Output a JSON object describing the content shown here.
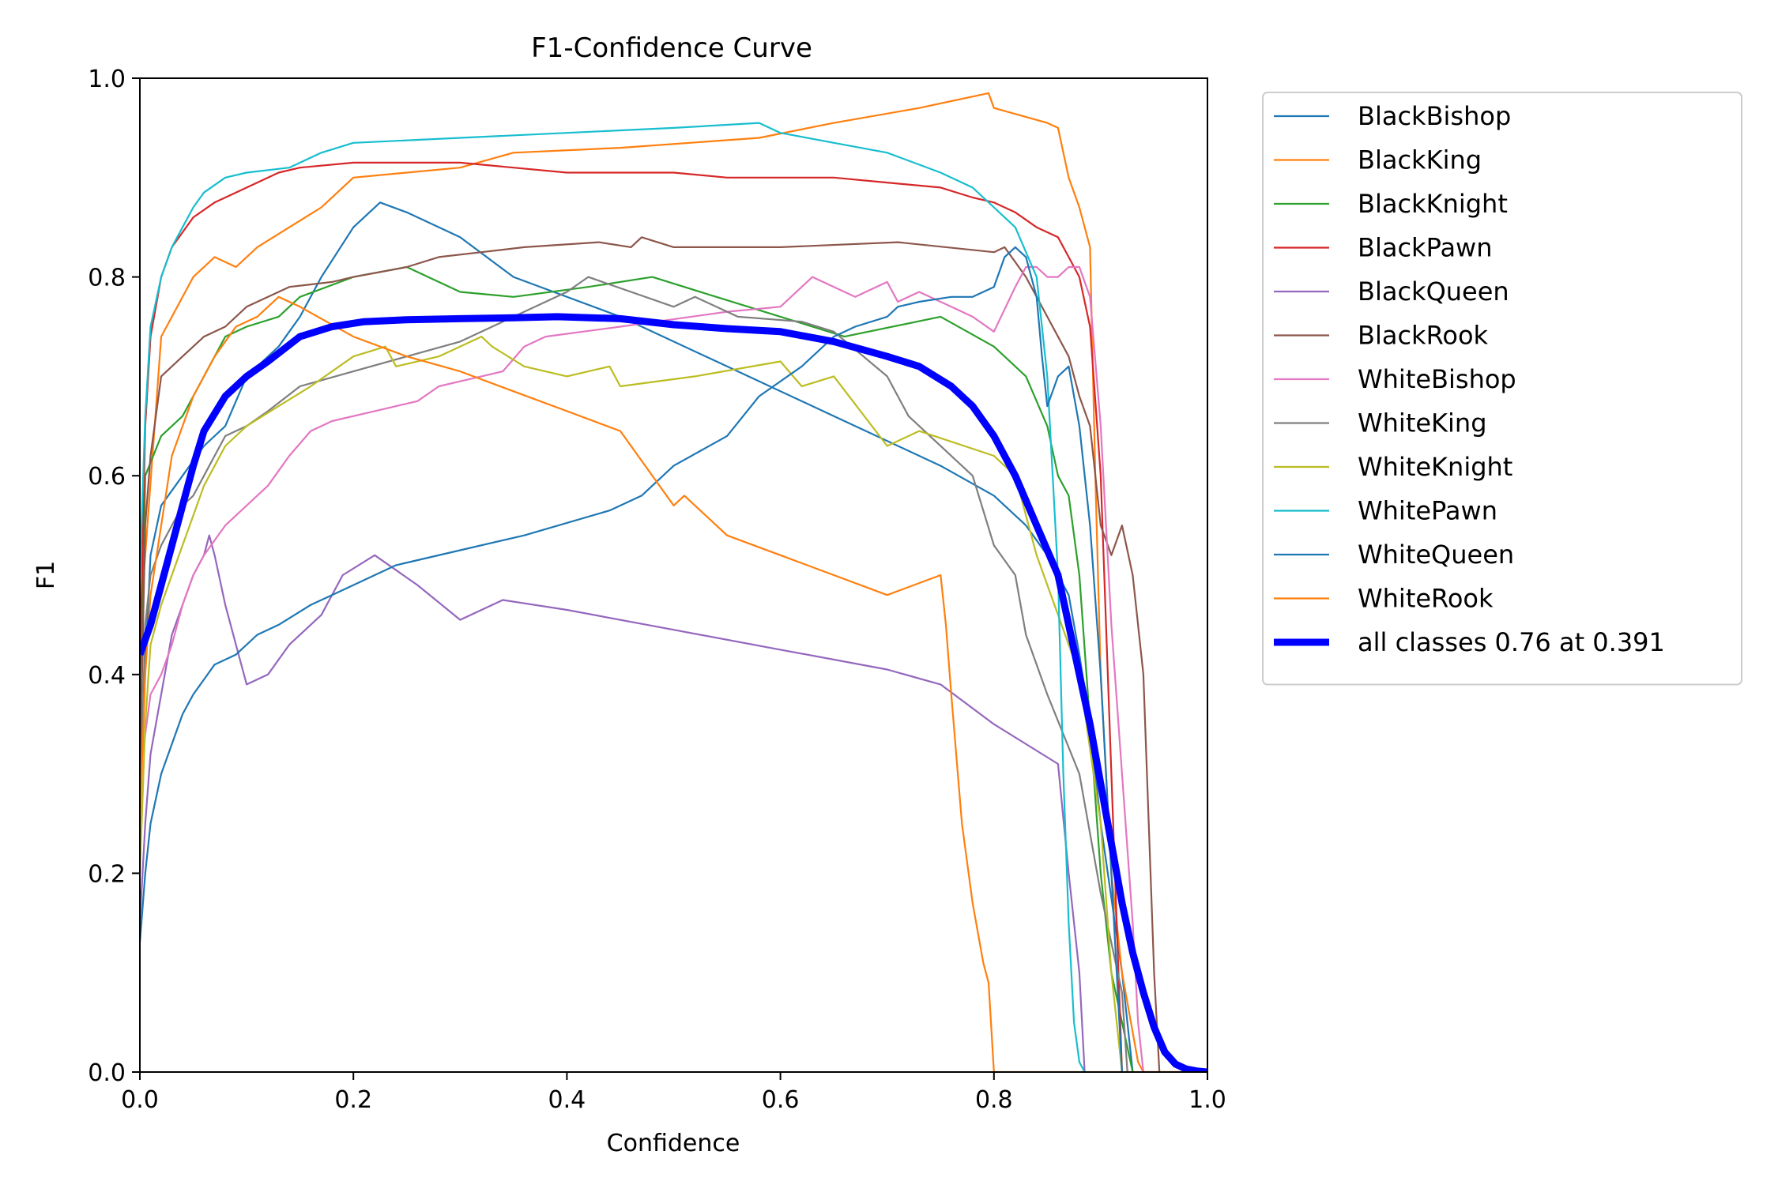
{
  "chart_data": {
    "type": "line",
    "title": "F1-Confidence Curve",
    "xlabel": "Confidence",
    "ylabel": "F1",
    "xlim": [
      0.0,
      1.0
    ],
    "ylim": [
      0.0,
      1.0
    ],
    "xticks": [
      "0.0",
      "0.2",
      "0.4",
      "0.6",
      "0.8",
      "1.0"
    ],
    "yticks": [
      "0.0",
      "0.2",
      "0.4",
      "0.6",
      "0.8",
      "1.0"
    ],
    "grid": false,
    "legend_position": "outside upper right",
    "series": [
      {
        "name": "BlackBishop",
        "color": "#1f77b4",
        "x": [
          0.0,
          0.01,
          0.02,
          0.04,
          0.06,
          0.08,
          0.1,
          0.13,
          0.15,
          0.17,
          0.2,
          0.225,
          0.25,
          0.3,
          0.35,
          0.45,
          0.55,
          0.65,
          0.75,
          0.8,
          0.83,
          0.85,
          0.87,
          0.88,
          0.89,
          0.9,
          0.92,
          0.93
        ],
        "y": [
          0.3,
          0.52,
          0.57,
          0.6,
          0.63,
          0.65,
          0.7,
          0.73,
          0.76,
          0.8,
          0.85,
          0.875,
          0.865,
          0.84,
          0.8,
          0.76,
          0.71,
          0.66,
          0.61,
          0.58,
          0.55,
          0.52,
          0.48,
          0.42,
          0.35,
          0.25,
          0.1,
          0.0
        ]
      },
      {
        "name": "BlackKing",
        "color": "#ff7f0e",
        "x": [
          0.0,
          0.005,
          0.02,
          0.05,
          0.07,
          0.09,
          0.11,
          0.14,
          0.17,
          0.2,
          0.3,
          0.35,
          0.45,
          0.58,
          0.65,
          0.73,
          0.795,
          0.8,
          0.85,
          0.86,
          0.87,
          0.88,
          0.89,
          0.895,
          0.9,
          0.91,
          0.92,
          0.93,
          0.935,
          0.94,
          1.0
        ],
        "y": [
          0.45,
          0.52,
          0.74,
          0.8,
          0.82,
          0.81,
          0.83,
          0.85,
          0.87,
          0.9,
          0.91,
          0.925,
          0.93,
          0.94,
          0.955,
          0.97,
          0.985,
          0.97,
          0.955,
          0.95,
          0.9,
          0.87,
          0.83,
          0.6,
          0.4,
          0.2,
          0.1,
          0.04,
          0.01,
          0.0,
          0.0
        ]
      },
      {
        "name": "BlackKnight",
        "color": "#2ca02c",
        "x": [
          0.0,
          0.005,
          0.02,
          0.04,
          0.06,
          0.08,
          0.1,
          0.13,
          0.15,
          0.2,
          0.25,
          0.3,
          0.35,
          0.42,
          0.48,
          0.54,
          0.6,
          0.66,
          0.75,
          0.8,
          0.83,
          0.85,
          0.86,
          0.87,
          0.88,
          0.89,
          0.9,
          0.91,
          0.92,
          0.93
        ],
        "y": [
          0.3,
          0.6,
          0.64,
          0.66,
          0.7,
          0.74,
          0.75,
          0.76,
          0.78,
          0.8,
          0.81,
          0.785,
          0.78,
          0.79,
          0.8,
          0.78,
          0.76,
          0.74,
          0.76,
          0.73,
          0.7,
          0.65,
          0.6,
          0.58,
          0.5,
          0.35,
          0.2,
          0.1,
          0.05,
          0.0
        ]
      },
      {
        "name": "BlackPawn",
        "color": "#d62728",
        "x": [
          0.0,
          0.005,
          0.01,
          0.02,
          0.03,
          0.05,
          0.07,
          0.09,
          0.11,
          0.13,
          0.15,
          0.2,
          0.25,
          0.3,
          0.35,
          0.4,
          0.45,
          0.5,
          0.55,
          0.6,
          0.65,
          0.7,
          0.75,
          0.78,
          0.8,
          0.82,
          0.84,
          0.86,
          0.87,
          0.88,
          0.89,
          0.9,
          0.91,
          0.92
        ],
        "y": [
          0.4,
          0.65,
          0.74,
          0.8,
          0.83,
          0.86,
          0.875,
          0.885,
          0.895,
          0.905,
          0.91,
          0.915,
          0.915,
          0.915,
          0.91,
          0.905,
          0.905,
          0.905,
          0.9,
          0.9,
          0.9,
          0.895,
          0.89,
          0.88,
          0.875,
          0.865,
          0.85,
          0.84,
          0.82,
          0.8,
          0.75,
          0.6,
          0.3,
          0.0
        ]
      },
      {
        "name": "BlackQueen",
        "color": "#9467bd",
        "x": [
          0.0,
          0.005,
          0.01,
          0.02,
          0.03,
          0.04,
          0.05,
          0.06,
          0.065,
          0.07,
          0.08,
          0.09,
          0.1,
          0.12,
          0.14,
          0.17,
          0.19,
          0.22,
          0.26,
          0.3,
          0.34,
          0.4,
          0.5,
          0.6,
          0.7,
          0.75,
          0.8,
          0.86,
          0.87,
          0.88,
          0.885
        ],
        "y": [
          0.15,
          0.25,
          0.32,
          0.38,
          0.44,
          0.47,
          0.5,
          0.52,
          0.54,
          0.52,
          0.47,
          0.43,
          0.39,
          0.4,
          0.43,
          0.46,
          0.5,
          0.52,
          0.49,
          0.455,
          0.475,
          0.465,
          0.445,
          0.425,
          0.405,
          0.39,
          0.35,
          0.31,
          0.2,
          0.1,
          0.0
        ]
      },
      {
        "name": "BlackRook",
        "color": "#8c564b",
        "x": [
          0.0,
          0.005,
          0.01,
          0.02,
          0.04,
          0.06,
          0.08,
          0.1,
          0.14,
          0.18,
          0.2,
          0.25,
          0.28,
          0.32,
          0.36,
          0.43,
          0.46,
          0.47,
          0.5,
          0.6,
          0.71,
          0.8,
          0.81,
          0.83,
          0.85,
          0.87,
          0.88,
          0.89,
          0.9,
          0.91,
          0.92,
          0.93,
          0.94,
          0.945,
          0.95,
          0.955
        ],
        "y": [
          0.3,
          0.55,
          0.62,
          0.7,
          0.72,
          0.74,
          0.75,
          0.77,
          0.79,
          0.795,
          0.8,
          0.81,
          0.82,
          0.825,
          0.83,
          0.835,
          0.83,
          0.84,
          0.83,
          0.83,
          0.835,
          0.825,
          0.83,
          0.8,
          0.76,
          0.72,
          0.68,
          0.65,
          0.55,
          0.52,
          0.55,
          0.5,
          0.4,
          0.25,
          0.1,
          0.0
        ]
      },
      {
        "name": "WhiteBishop",
        "color": "#e377c2",
        "x": [
          0.0,
          0.005,
          0.01,
          0.02,
          0.03,
          0.04,
          0.05,
          0.06,
          0.08,
          0.1,
          0.12,
          0.14,
          0.16,
          0.18,
          0.22,
          0.26,
          0.28,
          0.3,
          0.32,
          0.34,
          0.36,
          0.38,
          0.45,
          0.55,
          0.6,
          0.63,
          0.67,
          0.7,
          0.71,
          0.73,
          0.76,
          0.78,
          0.8,
          0.82,
          0.83,
          0.84,
          0.85,
          0.86,
          0.87,
          0.88,
          0.89,
          0.9,
          0.91,
          0.92,
          0.93,
          0.935,
          0.94
        ],
        "y": [
          0.3,
          0.34,
          0.38,
          0.4,
          0.43,
          0.47,
          0.5,
          0.52,
          0.55,
          0.57,
          0.59,
          0.62,
          0.645,
          0.655,
          0.665,
          0.675,
          0.69,
          0.695,
          0.7,
          0.705,
          0.73,
          0.74,
          0.75,
          0.765,
          0.77,
          0.8,
          0.78,
          0.795,
          0.775,
          0.785,
          0.77,
          0.76,
          0.745,
          0.79,
          0.81,
          0.81,
          0.8,
          0.8,
          0.81,
          0.81,
          0.78,
          0.65,
          0.45,
          0.3,
          0.15,
          0.05,
          0.0
        ]
      },
      {
        "name": "WhiteKing",
        "color": "#7f7f7f",
        "x": [
          0.0,
          0.005,
          0.01,
          0.02,
          0.03,
          0.04,
          0.05,
          0.06,
          0.07,
          0.08,
          0.1,
          0.12,
          0.15,
          0.2,
          0.25,
          0.3,
          0.33,
          0.4,
          0.42,
          0.5,
          0.52,
          0.54,
          0.56,
          0.62,
          0.65,
          0.7,
          0.72,
          0.78,
          0.8,
          0.82,
          0.83,
          0.85,
          0.88,
          0.9,
          0.92,
          0.925
        ],
        "y": [
          0.25,
          0.45,
          0.5,
          0.53,
          0.55,
          0.57,
          0.58,
          0.6,
          0.62,
          0.64,
          0.65,
          0.665,
          0.69,
          0.705,
          0.72,
          0.735,
          0.75,
          0.785,
          0.8,
          0.77,
          0.78,
          0.77,
          0.76,
          0.755,
          0.745,
          0.7,
          0.66,
          0.6,
          0.53,
          0.5,
          0.44,
          0.38,
          0.3,
          0.18,
          0.08,
          0.0
        ]
      },
      {
        "name": "WhiteKnight",
        "color": "#bcbd22",
        "x": [
          0.0,
          0.005,
          0.01,
          0.02,
          0.03,
          0.04,
          0.05,
          0.06,
          0.08,
          0.1,
          0.13,
          0.16,
          0.2,
          0.23,
          0.24,
          0.28,
          0.32,
          0.33,
          0.36,
          0.4,
          0.44,
          0.45,
          0.52,
          0.6,
          0.62,
          0.65,
          0.7,
          0.73,
          0.8,
          0.82,
          0.84,
          0.86,
          0.88,
          0.9,
          0.91,
          0.92
        ],
        "y": [
          0.2,
          0.35,
          0.43,
          0.47,
          0.5,
          0.53,
          0.56,
          0.59,
          0.63,
          0.65,
          0.67,
          0.69,
          0.72,
          0.73,
          0.71,
          0.72,
          0.74,
          0.73,
          0.71,
          0.7,
          0.71,
          0.69,
          0.7,
          0.715,
          0.69,
          0.7,
          0.63,
          0.645,
          0.62,
          0.6,
          0.52,
          0.46,
          0.4,
          0.25,
          0.1,
          0.0
        ]
      },
      {
        "name": "WhitePawn",
        "color": "#17becf",
        "x": [
          0.0,
          0.005,
          0.01,
          0.02,
          0.03,
          0.04,
          0.05,
          0.06,
          0.08,
          0.1,
          0.14,
          0.17,
          0.2,
          0.3,
          0.4,
          0.5,
          0.58,
          0.6,
          0.65,
          0.7,
          0.75,
          0.78,
          0.8,
          0.82,
          0.84,
          0.85,
          0.86,
          0.865,
          0.87,
          0.875,
          0.88,
          0.885
        ],
        "y": [
          0.5,
          0.66,
          0.75,
          0.8,
          0.83,
          0.85,
          0.87,
          0.885,
          0.9,
          0.905,
          0.91,
          0.925,
          0.935,
          0.94,
          0.945,
          0.95,
          0.955,
          0.945,
          0.935,
          0.925,
          0.905,
          0.89,
          0.87,
          0.85,
          0.8,
          0.7,
          0.5,
          0.3,
          0.15,
          0.05,
          0.01,
          0.0
        ]
      },
      {
        "name": "WhiteQueen",
        "color": "#1f77b4",
        "x": [
          0.0,
          0.005,
          0.01,
          0.02,
          0.03,
          0.04,
          0.05,
          0.07,
          0.09,
          0.11,
          0.13,
          0.16,
          0.18,
          0.2,
          0.24,
          0.3,
          0.36,
          0.44,
          0.47,
          0.5,
          0.55,
          0.58,
          0.62,
          0.65,
          0.67,
          0.7,
          0.71,
          0.73,
          0.76,
          0.78,
          0.8,
          0.81,
          0.82,
          0.83,
          0.84,
          0.845,
          0.85,
          0.86,
          0.87,
          0.88,
          0.89,
          0.9,
          0.91,
          0.92
        ],
        "y": [
          0.13,
          0.2,
          0.25,
          0.3,
          0.33,
          0.36,
          0.38,
          0.41,
          0.42,
          0.44,
          0.45,
          0.47,
          0.48,
          0.49,
          0.51,
          0.525,
          0.54,
          0.565,
          0.58,
          0.61,
          0.64,
          0.68,
          0.71,
          0.74,
          0.75,
          0.76,
          0.77,
          0.775,
          0.78,
          0.78,
          0.79,
          0.82,
          0.83,
          0.82,
          0.78,
          0.72,
          0.67,
          0.7,
          0.71,
          0.65,
          0.55,
          0.4,
          0.2,
          0.0
        ]
      },
      {
        "name": "WhiteRook",
        "color": "#ff7f0e",
        "x": [
          0.0,
          0.005,
          0.01,
          0.02,
          0.03,
          0.05,
          0.07,
          0.09,
          0.11,
          0.13,
          0.15,
          0.2,
          0.25,
          0.3,
          0.35,
          0.4,
          0.45,
          0.5,
          0.51,
          0.55,
          0.6,
          0.65,
          0.7,
          0.75,
          0.755,
          0.76,
          0.77,
          0.78,
          0.79,
          0.795,
          0.8,
          1.0
        ],
        "y": [
          0.25,
          0.4,
          0.48,
          0.55,
          0.62,
          0.68,
          0.72,
          0.75,
          0.76,
          0.78,
          0.77,
          0.74,
          0.72,
          0.705,
          0.685,
          0.665,
          0.645,
          0.57,
          0.58,
          0.54,
          0.52,
          0.5,
          0.48,
          0.5,
          0.45,
          0.38,
          0.25,
          0.17,
          0.11,
          0.09,
          0.0,
          0.0
        ]
      },
      {
        "name": "all classes 0.76 at 0.391",
        "color": "#0000ff",
        "bold": true,
        "x": [
          0.0,
          0.01,
          0.02,
          0.03,
          0.04,
          0.05,
          0.06,
          0.08,
          0.1,
          0.12,
          0.15,
          0.18,
          0.21,
          0.25,
          0.3,
          0.35,
          0.391,
          0.45,
          0.5,
          0.55,
          0.6,
          0.65,
          0.7,
          0.73,
          0.76,
          0.78,
          0.8,
          0.82,
          0.84,
          0.86,
          0.87,
          0.88,
          0.89,
          0.9,
          0.91,
          0.92,
          0.93,
          0.94,
          0.95,
          0.96,
          0.97,
          0.98,
          0.99,
          1.0
        ],
        "y": [
          0.42,
          0.45,
          0.49,
          0.53,
          0.57,
          0.61,
          0.645,
          0.68,
          0.7,
          0.715,
          0.74,
          0.75,
          0.755,
          0.757,
          0.758,
          0.759,
          0.76,
          0.758,
          0.752,
          0.748,
          0.745,
          0.735,
          0.72,
          0.71,
          0.69,
          0.67,
          0.64,
          0.6,
          0.55,
          0.5,
          0.45,
          0.4,
          0.35,
          0.29,
          0.23,
          0.17,
          0.12,
          0.08,
          0.045,
          0.02,
          0.008,
          0.003,
          0.001,
          0.0
        ]
      }
    ]
  }
}
